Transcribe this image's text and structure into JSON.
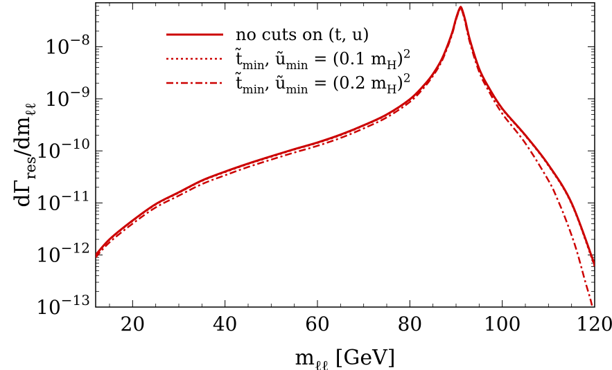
{
  "chart_data": {
    "type": "line",
    "xlabel": "m_{ℓℓ} [GeV]",
    "ylabel": "dΓ_{res}/dm_{ℓℓ}",
    "xlim": [
      12,
      120
    ],
    "ylim": [
      1e-13,
      7e-08
    ],
    "yscale": "log",
    "grid": false,
    "legend_position": "top-left",
    "x_ticks": [
      20,
      40,
      60,
      80,
      100,
      120
    ],
    "y_ticks": [
      {
        "value": 1e-08,
        "mantissa": "10",
        "exponent": "−8"
      },
      {
        "value": 1e-09,
        "mantissa": "10",
        "exponent": "−9"
      },
      {
        "value": 1e-10,
        "mantissa": "10",
        "exponent": "−10"
      },
      {
        "value": 1e-11,
        "mantissa": "10",
        "exponent": "−11"
      },
      {
        "value": 1e-12,
        "mantissa": "10",
        "exponent": "−12"
      },
      {
        "value": 1e-13,
        "mantissa": "10",
        "exponent": "−13"
      }
    ],
    "series": [
      {
        "name": "no cuts on (t, u)",
        "style": "solid",
        "color": "#cc0000",
        "x": [
          12,
          15,
          20,
          25,
          30,
          35,
          40,
          45,
          50,
          55,
          60,
          65,
          70,
          75,
          80,
          83,
          85,
          87,
          89,
          90,
          90.8,
          91.2,
          92,
          93,
          95,
          97,
          100,
          105,
          110,
          115,
          120
        ],
        "y": [
          1e-12,
          2e-12,
          4.6e-12,
          9.5e-12,
          1.6e-11,
          2.7e-11,
          4e-11,
          5.7e-11,
          7.9e-11,
          1.08e-10,
          1.45e-10,
          2.05e-10,
          3.1e-10,
          5e-10,
          9.8e-10,
          1.8e-09,
          3e-09,
          6e-09,
          1.7e-08,
          3.5e-08,
          5.5e-08,
          5.5e-08,
          3.2e-08,
          1.35e-08,
          3.8e-09,
          1.7e-09,
          6.5e-10,
          2e-10,
          5.4e-11,
          1e-11,
          6.5e-13
        ]
      },
      {
        "name": "t̃_{min}, ũ_{min} = (0.1 m_H)^2",
        "style": "dotted",
        "color": "#cc0000",
        "x": [
          12,
          15,
          20,
          25,
          30,
          35,
          40,
          45,
          50,
          55,
          60,
          65,
          70,
          75,
          80,
          83,
          85,
          87,
          89,
          90,
          90.8,
          91.2,
          92,
          93,
          95,
          97,
          100,
          105,
          110,
          115,
          120
        ],
        "y": [
          9.8e-13,
          1.96e-12,
          4.5e-12,
          9.3e-12,
          1.57e-11,
          2.65e-11,
          3.9e-11,
          5.6e-11,
          7.7e-11,
          1.06e-10,
          1.42e-10,
          2e-10,
          3.05e-10,
          4.9e-10,
          9.6e-10,
          1.77e-09,
          2.95e-09,
          5.9e-09,
          1.67e-08,
          3.45e-08,
          5.4e-08,
          5.4e-08,
          3.15e-08,
          1.33e-08,
          3.7e-09,
          1.66e-09,
          6.3e-10,
          1.95e-10,
          5.2e-11,
          9.6e-12,
          6e-13
        ]
      },
      {
        "name": "t̃_{min}, ũ_{min} = (0.2 m_H)^2",
        "style": "dashdot",
        "color": "#cc0000",
        "x": [
          12,
          15,
          20,
          25,
          30,
          35,
          40,
          45,
          50,
          55,
          60,
          65,
          70,
          75,
          80,
          83,
          85,
          87,
          89,
          90,
          90.8,
          91.2,
          92,
          93,
          95,
          97,
          100,
          105,
          110,
          112,
          114,
          116,
          118,
          119,
          119.5
        ],
        "y": [
          9e-13,
          1.75e-12,
          4e-12,
          8.2e-12,
          1.38e-11,
          2.3e-11,
          3.4e-11,
          4.9e-11,
          6.8e-11,
          9.3e-11,
          1.25e-10,
          1.77e-10,
          2.7e-10,
          4.4e-10,
          8.7e-10,
          1.62e-09,
          2.75e-09,
          5.5e-09,
          1.58e-08,
          3.3e-08,
          5.2e-08,
          5.2e-08,
          2.9e-08,
          1.2e-08,
          3.3e-09,
          1.45e-09,
          5.2e-10,
          1.4e-10,
          2.7e-11,
          1.15e-11,
          4.2e-12,
          1.3e-12,
          3e-13,
          1.5e-13,
          1e-13
        ]
      }
    ]
  }
}
